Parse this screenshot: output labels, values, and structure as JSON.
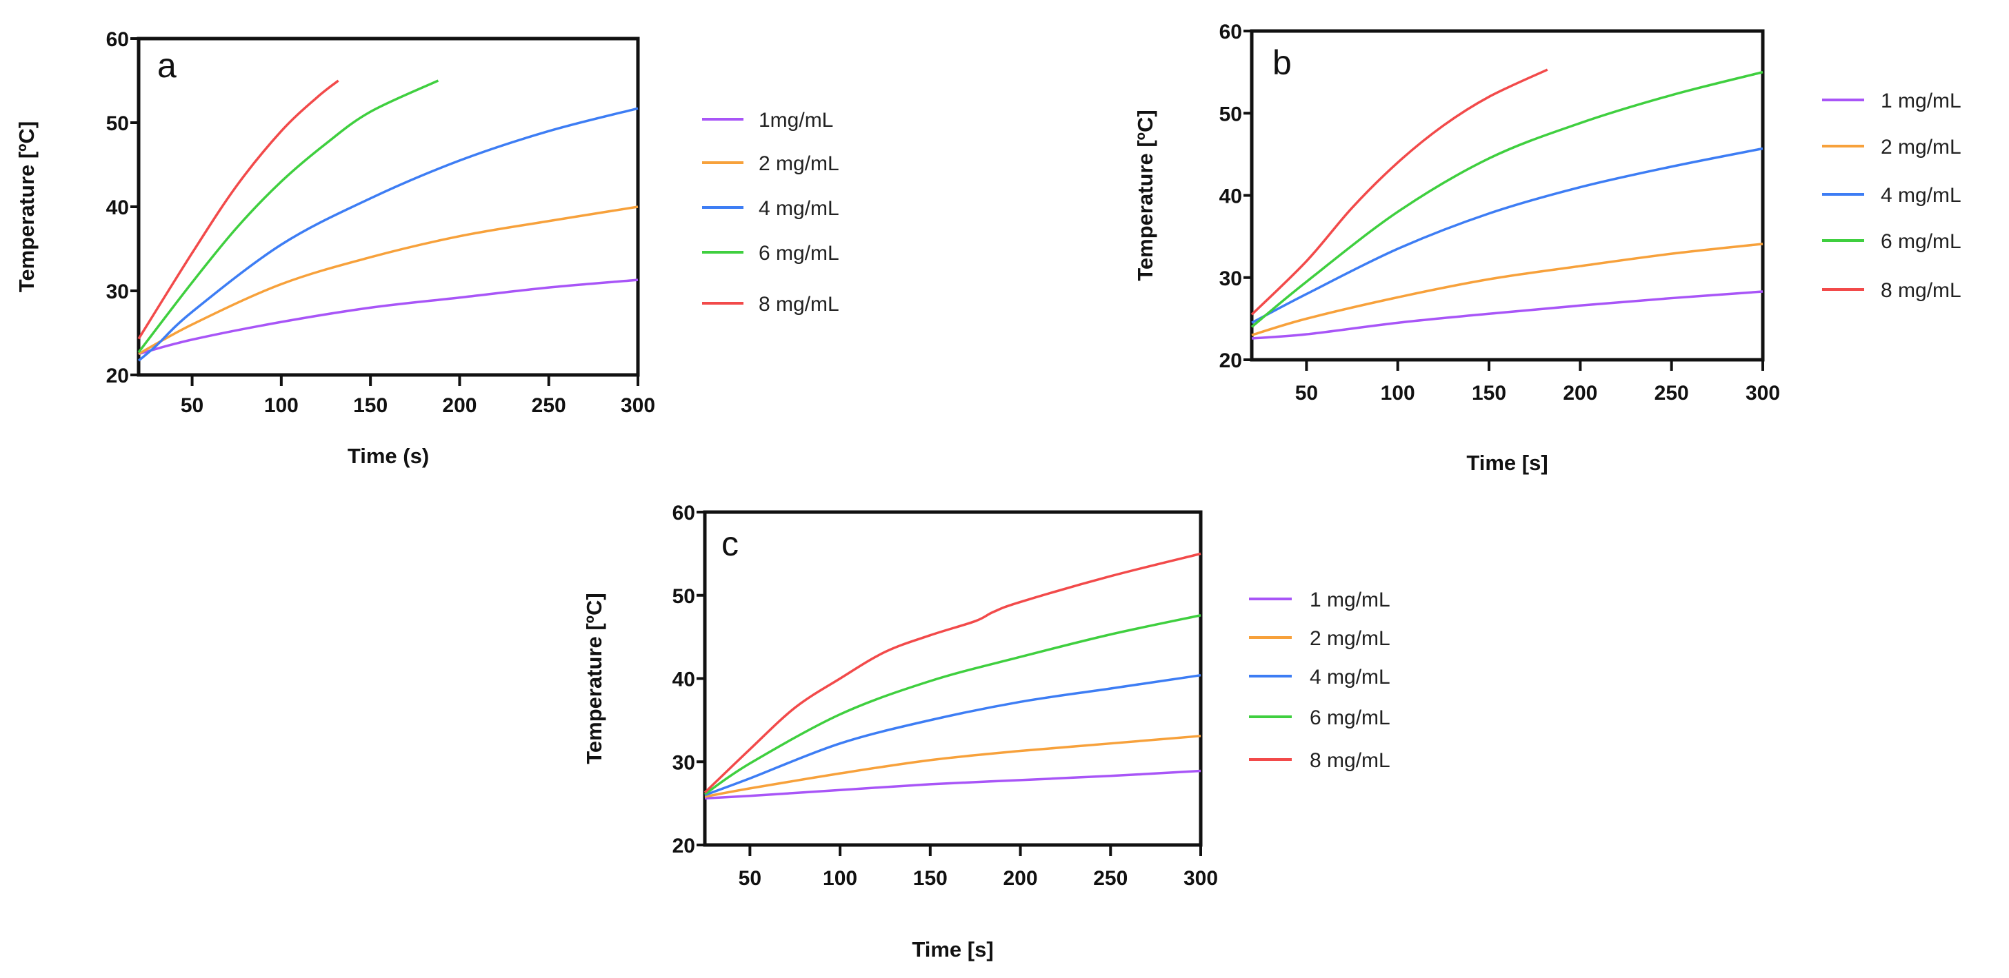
{
  "colors": {
    "1 mg/mL": "#a855f7",
    "2 mg/mL": "#f7a13b",
    "4 mg/mL": "#3d7df4",
    "6 mg/mL": "#3fcf3f",
    "8 mg/mL": "#f24a4a"
  },
  "chart_data": [
    {
      "type": "line",
      "panel_label": "a",
      "title": "",
      "xlabel": "Time (s)",
      "ylabel": "Temperature [ºC]",
      "xlim": [
        20,
        300
      ],
      "ylim": [
        20,
        60
      ],
      "xticks": [
        50,
        100,
        150,
        200,
        250,
        300
      ],
      "yticks": [
        20,
        30,
        40,
        50,
        60
      ],
      "legend_position": "right",
      "grid": false,
      "series": [
        {
          "name": "1mg/mL",
          "color_key": "1 mg/mL",
          "x": [
            20,
            50,
            100,
            150,
            200,
            250,
            300
          ],
          "y": [
            22.5,
            24.2,
            26.3,
            28,
            29.2,
            30.4,
            31.3
          ]
        },
        {
          "name": "2 mg/mL",
          "color_key": "2 mg/mL",
          "x": [
            20,
            50,
            100,
            150,
            200,
            250,
            300
          ],
          "y": [
            22.5,
            26,
            30.8,
            34,
            36.5,
            38.3,
            40
          ]
        },
        {
          "name": "4 mg/mL",
          "color_key": "4 mg/mL",
          "x": [
            20,
            30,
            50,
            100,
            150,
            200,
            250,
            300
          ],
          "y": [
            21.7,
            23.5,
            27.5,
            35.5,
            41,
            45.5,
            49,
            51.7
          ]
        },
        {
          "name": "6 mg/mL",
          "color_key": "6 mg/mL",
          "x": [
            20,
            50,
            75,
            100,
            125,
            150,
            188
          ],
          "y": [
            22.7,
            31,
            37.5,
            43,
            47.5,
            51.3,
            55
          ]
        },
        {
          "name": "8 mg/mL",
          "color_key": "8 mg/mL",
          "x": [
            20,
            50,
            75,
            100,
            120,
            132
          ],
          "y": [
            24.3,
            34.5,
            42.5,
            49,
            53,
            55
          ]
        }
      ]
    },
    {
      "type": "line",
      "panel_label": "b",
      "title": "",
      "xlabel": "Time [s]",
      "ylabel": "Temperature [ºC]",
      "xlim": [
        20,
        300
      ],
      "ylim": [
        20,
        60
      ],
      "xticks": [
        50,
        100,
        150,
        200,
        250,
        300
      ],
      "yticks": [
        20,
        30,
        40,
        50,
        60
      ],
      "legend_position": "right",
      "grid": false,
      "series": [
        {
          "name": "1 mg/mL",
          "color_key": "1 mg/mL",
          "x": [
            20,
            50,
            100,
            150,
            200,
            250,
            300
          ],
          "y": [
            22.6,
            23.1,
            24.5,
            25.6,
            26.6,
            27.5,
            28.3
          ]
        },
        {
          "name": "2 mg/mL",
          "color_key": "2 mg/mL",
          "x": [
            20,
            50,
            100,
            150,
            200,
            250,
            300
          ],
          "y": [
            23,
            25,
            27.6,
            29.8,
            31.4,
            32.9,
            34.1
          ]
        },
        {
          "name": "4 mg/mL",
          "color_key": "4 mg/mL",
          "x": [
            20,
            50,
            100,
            150,
            200,
            250,
            300
          ],
          "y": [
            24.5,
            28,
            33.5,
            37.8,
            41,
            43.5,
            45.7
          ]
        },
        {
          "name": "6 mg/mL",
          "color_key": "6 mg/mL",
          "x": [
            20,
            50,
            100,
            150,
            200,
            250,
            300
          ],
          "y": [
            24,
            29.5,
            38,
            44.5,
            48.8,
            52.2,
            55
          ]
        },
        {
          "name": "8 mg/mL",
          "color_key": "8 mg/mL",
          "x": [
            20,
            50,
            75,
            100,
            125,
            150,
            182
          ],
          "y": [
            25.5,
            32,
            38.5,
            44,
            48.5,
            52,
            55.3
          ]
        }
      ]
    },
    {
      "type": "line",
      "panel_label": "c",
      "title": "",
      "xlabel": "Time [s]",
      "ylabel": "Temperature [ºC]",
      "xlim": [
        25,
        300
      ],
      "ylim": [
        20,
        60
      ],
      "xticks": [
        50,
        100,
        150,
        200,
        250,
        300
      ],
      "yticks": [
        20,
        30,
        40,
        50,
        60
      ],
      "legend_position": "right",
      "grid": false,
      "series": [
        {
          "name": "1 mg/mL",
          "color_key": "1 mg/mL",
          "x": [
            25,
            50,
            100,
            150,
            200,
            250,
            300
          ],
          "y": [
            25.6,
            25.9,
            26.6,
            27.3,
            27.8,
            28.3,
            28.9
          ]
        },
        {
          "name": "2 mg/mL",
          "color_key": "2 mg/mL",
          "x": [
            25,
            50,
            100,
            150,
            200,
            250,
            300
          ],
          "y": [
            25.8,
            26.8,
            28.6,
            30.2,
            31.3,
            32.2,
            33.1
          ]
        },
        {
          "name": "4 mg/mL",
          "color_key": "4 mg/mL",
          "x": [
            25,
            50,
            100,
            150,
            200,
            250,
            300
          ],
          "y": [
            26,
            28,
            32.2,
            35,
            37.2,
            38.8,
            40.4
          ]
        },
        {
          "name": "6 mg/mL",
          "color_key": "6 mg/mL",
          "x": [
            25,
            50,
            100,
            150,
            200,
            250,
            300
          ],
          "y": [
            26.1,
            29.8,
            35.7,
            39.7,
            42.6,
            45.3,
            47.6
          ]
        },
        {
          "name": "8 mg/mL",
          "color_key": "8 mg/mL",
          "x": [
            25,
            50,
            75,
            100,
            125,
            150,
            175,
            185,
            200,
            250,
            300
          ],
          "y": [
            26.3,
            31.5,
            36.5,
            40,
            43.2,
            45.2,
            46.9,
            48,
            49.2,
            52.3,
            55
          ]
        }
      ]
    }
  ]
}
